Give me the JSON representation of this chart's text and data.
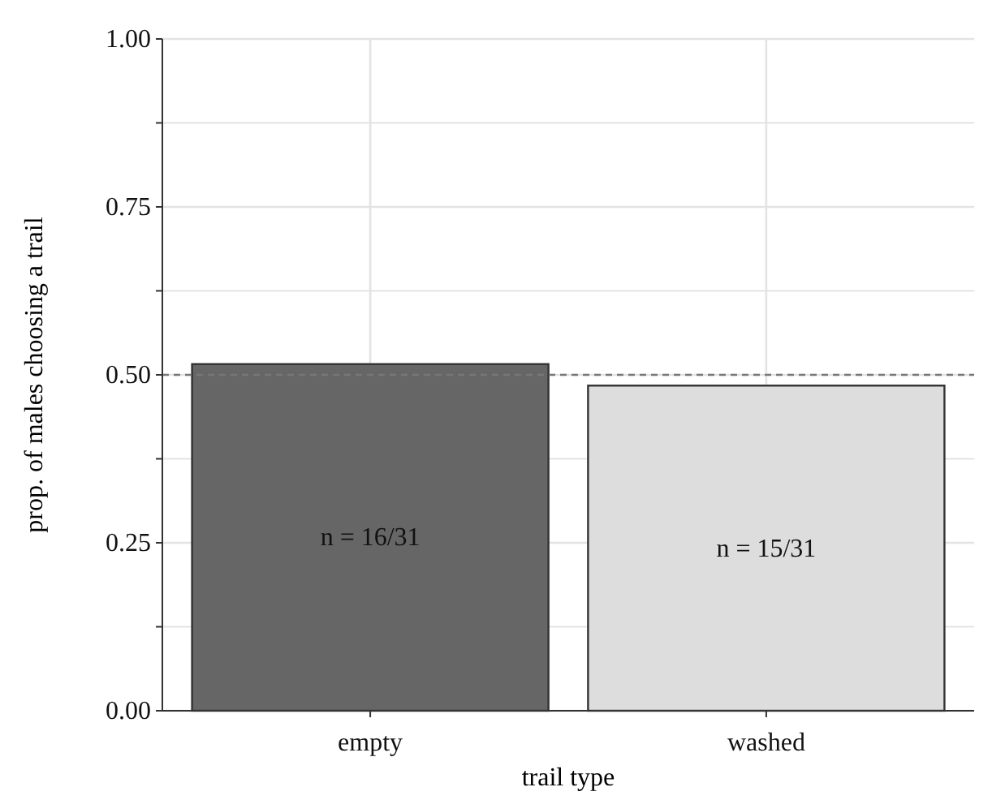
{
  "chart_data": {
    "type": "bar",
    "xlabel": "trail type",
    "ylabel": "prop. of males choosing a trail",
    "categories": [
      "empty",
      "washed"
    ],
    "values": [
      0.516,
      0.484
    ],
    "colors": [
      "#666666",
      "#dddddd"
    ],
    "value_labels": [
      "n = 16/31",
      "n = 15/31"
    ],
    "ylim": [
      0,
      1
    ],
    "yticks": [
      {
        "value": 0,
        "label": "0.00"
      },
      {
        "value": 0.125,
        "label": null
      },
      {
        "value": 0.25,
        "label": "0.25"
      },
      {
        "value": 0.375,
        "label": null
      },
      {
        "value": 0.5,
        "label": "0.50"
      },
      {
        "value": 0.625,
        "label": null
      },
      {
        "value": 0.75,
        "label": "0.75"
      },
      {
        "value": 0.875,
        "label": null
      },
      {
        "value": 1,
        "label": "1.00"
      }
    ],
    "grid": true,
    "ref_lines": [
      {
        "axis": "y",
        "value": 0.5,
        "color": "#777777",
        "line_style": "dashed"
      }
    ]
  }
}
